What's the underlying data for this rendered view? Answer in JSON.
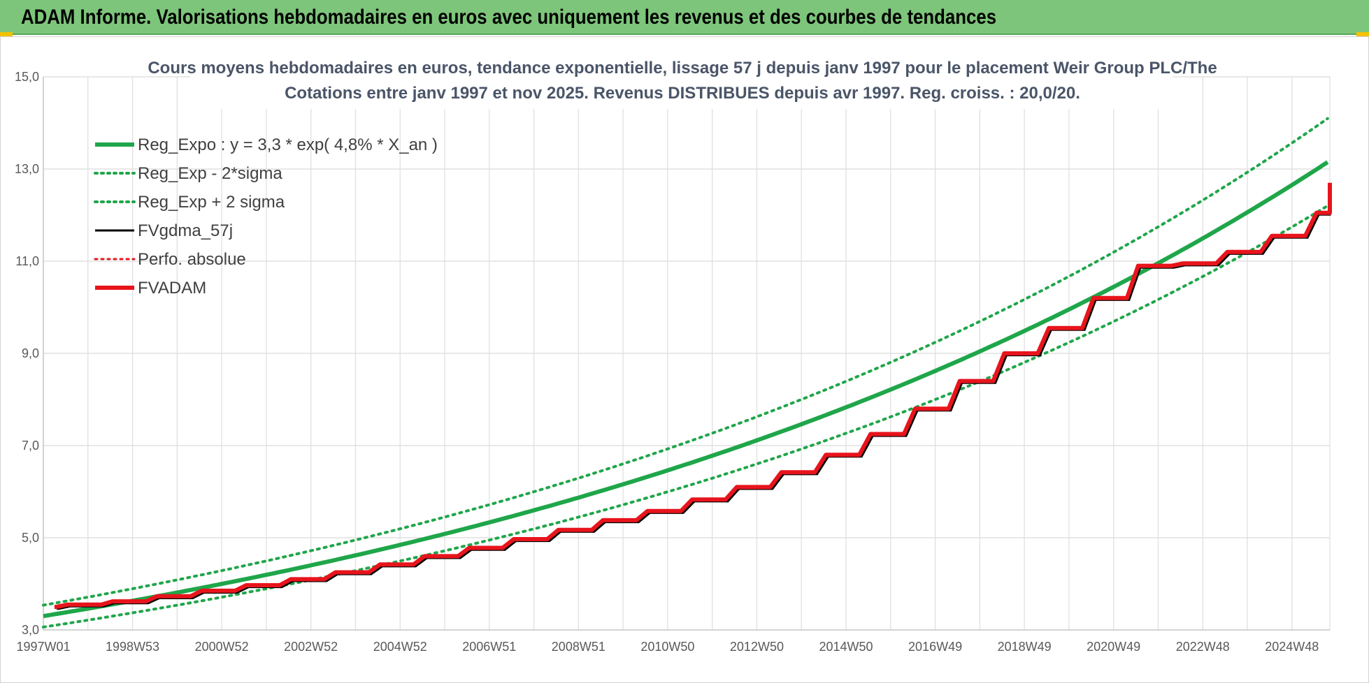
{
  "banner": {
    "title": "ADAM Informe. Valorisations hebdomadaires en euros avec uniquement les revenus et des courbes de tendances"
  },
  "chart_data": {
    "type": "line",
    "title_lines": [
      "Cours moyens hebdomadaires en euros, tendance exponentielle, lissage 57 j depuis janv 1997 pour le placement Weir Group PLC/The",
      "Cotations entre janv 1997 et nov 2025. Revenus DISTRIBUES depuis avr 1997. Reg. croiss. : 20,0/20."
    ],
    "x_tick_labels": [
      "1997W01",
      "1998W53",
      "2000W52",
      "2002W52",
      "2004W52",
      "2006W51",
      "2008W51",
      "2010W50",
      "2012W50",
      "2014W50",
      "2016W49",
      "2018W49",
      "2020W49",
      "2022W48",
      "2024W48"
    ],
    "x_range_years": [
      1997.0,
      2025.85
    ],
    "y_tick_labels": [
      "3,0",
      "5,0",
      "7,0",
      "9,0",
      "11,0",
      "13,0",
      "15,0"
    ],
    "ylim": [
      3,
      15
    ],
    "grid": true,
    "legend_position": "top-left",
    "regression": {
      "a": 3.3,
      "rate": 0.048,
      "sigma_offset": 0.072
    },
    "series": [
      {
        "name": "Reg_Expo : y = 3,3 * exp( 4,8% *  X_an )",
        "color": "#1fa64a",
        "style": "solid",
        "width": 6
      },
      {
        "name": "Reg_Exp - 2*sigma",
        "color": "#1fa64a",
        "style": "dotted",
        "width": 4
      },
      {
        "name": "Reg_Exp + 2 sigma",
        "color": "#1fa64a",
        "style": "dotted",
        "width": 4
      },
      {
        "name": "FVgdma_57j",
        "color": "#000000",
        "style": "solid",
        "width": 3
      },
      {
        "name": "Perfo. absolue",
        "color": "#e8141c",
        "style": "dotted",
        "width": 3
      },
      {
        "name": "FVADAM",
        "color": "#e8141c",
        "style": "solid",
        "width": 6
      }
    ],
    "fvadam_points": [
      [
        1997.0,
        3.5
      ],
      [
        1997.3,
        3.55
      ],
      [
        1998.3,
        3.62
      ],
      [
        1999.3,
        3.73
      ],
      [
        2000.3,
        3.85
      ],
      [
        2001.3,
        3.97
      ],
      [
        2002.3,
        4.1
      ],
      [
        2003.3,
        4.25
      ],
      [
        2004.3,
        4.42
      ],
      [
        2005.3,
        4.6
      ],
      [
        2006.3,
        4.78
      ],
      [
        2007.3,
        4.97
      ],
      [
        2008.3,
        5.17
      ],
      [
        2009.3,
        5.38
      ],
      [
        2010.3,
        5.58
      ],
      [
        2011.3,
        5.83
      ],
      [
        2012.3,
        6.1
      ],
      [
        2013.3,
        6.42
      ],
      [
        2014.3,
        6.8
      ],
      [
        2015.3,
        7.25
      ],
      [
        2016.3,
        7.8
      ],
      [
        2017.3,
        8.4
      ],
      [
        2018.3,
        9.0
      ],
      [
        2019.3,
        9.55
      ],
      [
        2020.3,
        10.2
      ],
      [
        2021.3,
        10.9
      ],
      [
        2022.3,
        10.95
      ],
      [
        2023.3,
        11.2
      ],
      [
        2024.3,
        11.55
      ],
      [
        2025.3,
        12.05
      ],
      [
        2025.85,
        12.7
      ]
    ]
  }
}
